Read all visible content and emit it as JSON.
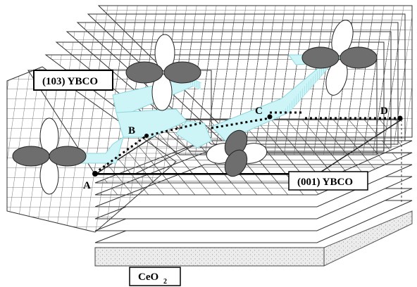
{
  "labels": {
    "ybco_103": "(103) YBCO",
    "ybco_001": "(001) YBCO",
    "ceo2_main": "CeO",
    "ceo2_sub": "2"
  },
  "points": [
    {
      "id": "A",
      "text": "A"
    },
    {
      "id": "B",
      "text": "B"
    },
    {
      "id": "C",
      "text": "C"
    },
    {
      "id": "D",
      "text": "D"
    }
  ],
  "colors": {
    "grid_line": "#555555",
    "plane_fill": "#ffffff",
    "channel_fill": "#cdf4f7",
    "channel_edge": "#8fd6dc",
    "lobe_dark": "#6e6e6e",
    "lobe_light": "#ffffff",
    "substrate": "#e8e8e8"
  },
  "orbitals": [
    {
      "name": "orbital-left"
    },
    {
      "name": "orbital-top"
    },
    {
      "name": "orbital-center"
    },
    {
      "name": "orbital-right"
    }
  ]
}
